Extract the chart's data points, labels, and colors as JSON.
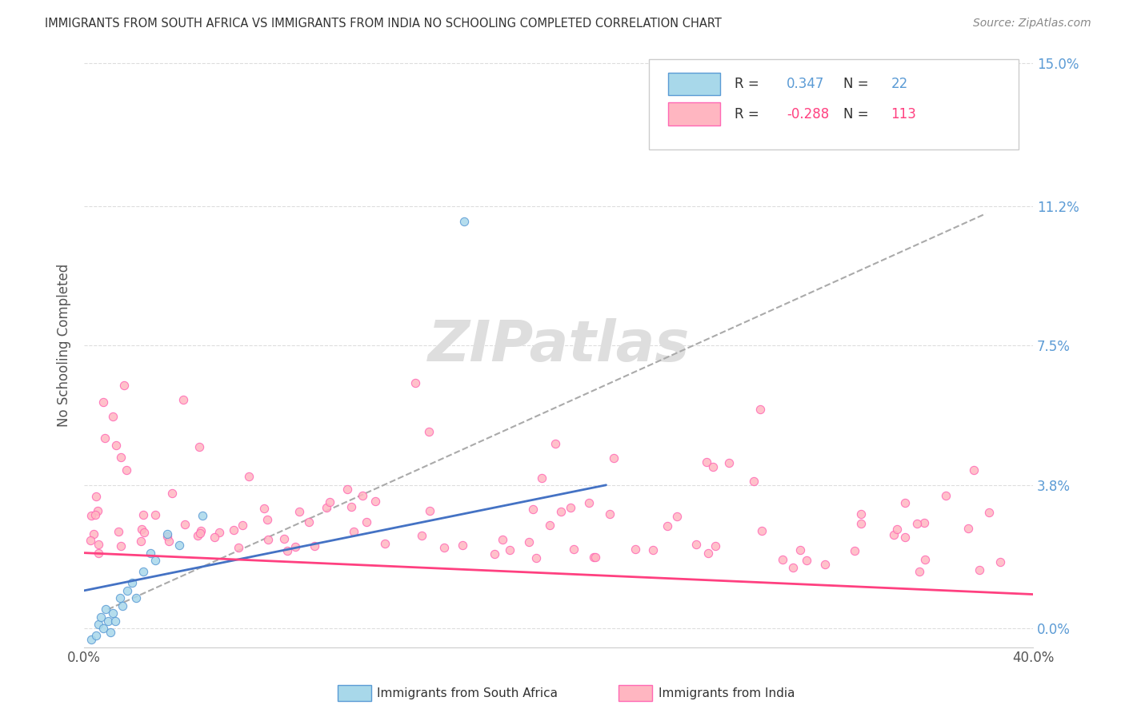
{
  "title": "IMMIGRANTS FROM SOUTH AFRICA VS IMMIGRANTS FROM INDIA NO SCHOOLING COMPLETED CORRELATION CHART",
  "source_text": "Source: ZipAtlas.com",
  "ylabel": "No Schooling Completed",
  "xlim": [
    0.0,
    0.4
  ],
  "ylim": [
    -0.005,
    0.155
  ],
  "ytick_vals": [
    0.0,
    0.038,
    0.075,
    0.112,
    0.15
  ],
  "ytick_labels": [
    "0.0%",
    "3.8%",
    "7.5%",
    "11.2%",
    "15.0%"
  ],
  "xtick_vals": [
    0.0,
    0.4
  ],
  "xtick_labels": [
    "0.0%",
    "40.0%"
  ],
  "r_sa": 0.347,
  "n_sa": 22,
  "r_india": -0.288,
  "n_india": 113,
  "color_sa_fill": "#A8D8EA",
  "color_sa_edge": "#5B9BD5",
  "color_india_fill": "#FFB6C1",
  "color_india_edge": "#FF69B4",
  "color_sa_line": "#4472C4",
  "color_india_line": "#FF4080",
  "color_dash": "#AAAAAA",
  "watermark_color": "#DEDEDE",
  "grid_color": "#DDDDDD",
  "legend_r_color_sa": "#5B9BD5",
  "legend_r_color_india": "#FF4080",
  "legend_n_color": "#333333"
}
